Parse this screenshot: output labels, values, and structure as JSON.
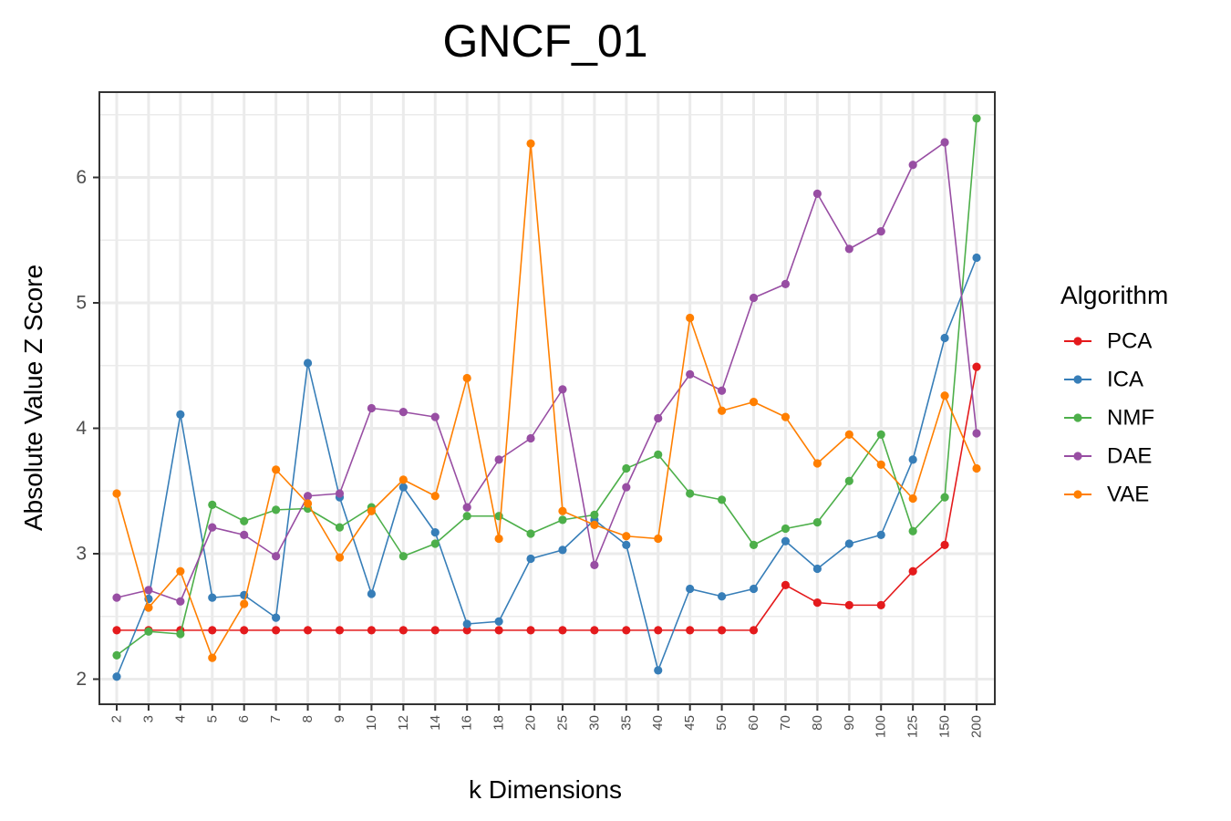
{
  "chart_data": {
    "type": "line",
    "title": "GNCF_01",
    "xlabel": "k Dimensions",
    "ylabel": "Absolute Value Z Score",
    "categories": [
      "2",
      "3",
      "4",
      "5",
      "6",
      "7",
      "8",
      "9",
      "10",
      "12",
      "14",
      "16",
      "18",
      "20",
      "25",
      "30",
      "35",
      "40",
      "45",
      "50",
      "60",
      "70",
      "80",
      "90",
      "100",
      "125",
      "150",
      "200"
    ],
    "ylim": [
      1.8,
      6.68
    ],
    "yticks": [
      2,
      3,
      4,
      5,
      6
    ],
    "grid": true,
    "legend": {
      "title": "Algorithm",
      "position": "right"
    },
    "series": [
      {
        "name": "PCA",
        "color": "#e41a1c",
        "values": [
          2.39,
          2.39,
          2.39,
          2.39,
          2.39,
          2.39,
          2.39,
          2.39,
          2.39,
          2.39,
          2.39,
          2.39,
          2.39,
          2.39,
          2.39,
          2.39,
          2.39,
          2.39,
          2.39,
          2.39,
          2.39,
          2.75,
          2.61,
          2.59,
          2.59,
          2.86,
          3.07,
          4.49
        ]
      },
      {
        "name": "ICA",
        "color": "#377eb8",
        "values": [
          2.02,
          2.64,
          4.11,
          2.65,
          2.67,
          2.49,
          4.52,
          3.45,
          2.68,
          3.53,
          3.17,
          2.44,
          2.46,
          2.96,
          3.03,
          3.27,
          3.07,
          2.07,
          2.72,
          2.66,
          2.72,
          3.1,
          2.88,
          3.08,
          3.15,
          3.75,
          4.72,
          5.36
        ]
      },
      {
        "name": "NMF",
        "color": "#4daf4a",
        "values": [
          2.19,
          2.38,
          2.36,
          3.39,
          3.26,
          3.35,
          3.36,
          3.21,
          3.37,
          2.98,
          3.08,
          3.3,
          3.3,
          3.16,
          3.27,
          3.31,
          3.68,
          3.79,
          3.48,
          3.43,
          3.07,
          3.2,
          3.25,
          3.58,
          3.95,
          3.18,
          3.45,
          6.47
        ]
      },
      {
        "name": "DAE",
        "color": "#984ea3",
        "values": [
          2.65,
          2.71,
          2.62,
          3.21,
          3.15,
          2.98,
          3.46,
          3.48,
          4.16,
          4.13,
          4.09,
          3.37,
          3.75,
          3.92,
          4.31,
          2.91,
          3.53,
          4.08,
          4.43,
          4.3,
          5.04,
          5.15,
          5.87,
          5.43,
          5.57,
          6.1,
          6.28,
          3.96
        ]
      },
      {
        "name": "VAE",
        "color": "#ff7f00",
        "values": [
          3.48,
          2.57,
          2.86,
          2.17,
          2.6,
          3.67,
          3.4,
          2.97,
          3.34,
          3.59,
          3.46,
          4.4,
          3.12,
          6.27,
          3.34,
          3.23,
          3.14,
          3.12,
          4.88,
          4.14,
          4.21,
          4.09,
          3.72,
          3.95,
          3.71,
          3.44,
          4.26,
          3.68
        ]
      }
    ]
  }
}
